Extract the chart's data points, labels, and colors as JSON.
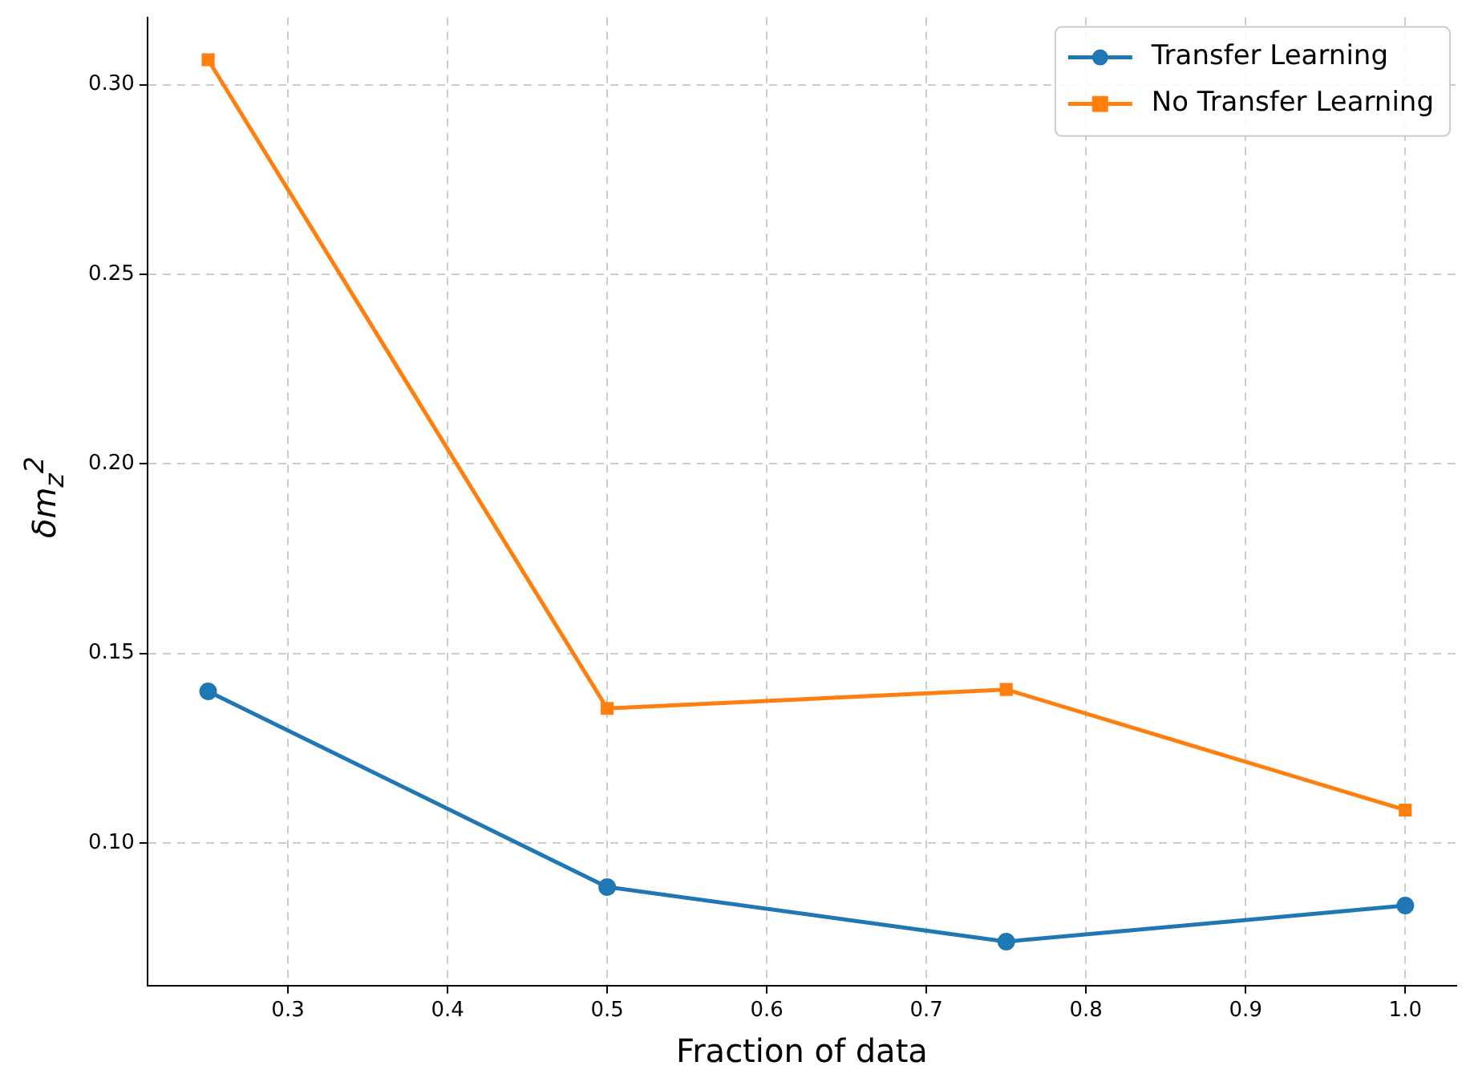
{
  "chart_data": {
    "type": "line",
    "xlabel": "Fraction of data",
    "ylabel": "δm$_{z}$$^{2}$",
    "x": [
      0.25,
      0.5,
      0.75,
      1.0
    ],
    "series": [
      {
        "name": "Transfer Learning",
        "color": "#1f77b4",
        "marker": "circle",
        "values": [
          0.14,
          0.0884,
          0.074,
          0.0835
        ]
      },
      {
        "name": "No Transfer Learning",
        "color": "#ff7f0e",
        "marker": "square",
        "values": [
          0.3066,
          0.1355,
          0.1405,
          0.1087
        ]
      }
    ],
    "xlim": [
      0.212,
      1.032
    ],
    "xticks": [
      {
        "value": 0.3,
        "label": "0.3"
      },
      {
        "value": 0.4,
        "label": "0.4"
      },
      {
        "value": 0.5,
        "label": "0.5"
      },
      {
        "value": 0.6,
        "label": "0.6"
      },
      {
        "value": 0.7,
        "label": "0.7"
      },
      {
        "value": 0.8,
        "label": "0.8"
      },
      {
        "value": 0.9,
        "label": "0.9"
      },
      {
        "value": 1.0,
        "label": "1.0"
      }
    ],
    "ylim": [
      0.0624,
      0.3178
    ],
    "yticks": [
      {
        "value": 0.1,
        "label": "0.10"
      },
      {
        "value": 0.15,
        "label": "0.15"
      },
      {
        "value": 0.2,
        "label": "0.20"
      },
      {
        "value": 0.25,
        "label": "0.25"
      },
      {
        "value": 0.3,
        "label": "0.30"
      }
    ],
    "grid": true,
    "legend": "top right",
    "line_style": "solid"
  }
}
